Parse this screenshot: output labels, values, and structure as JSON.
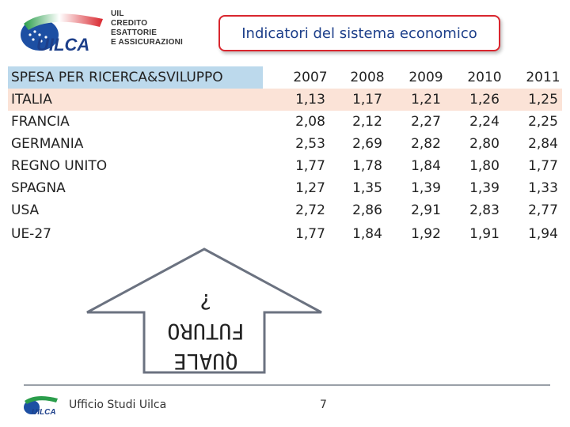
{
  "logo": {
    "wordmark": "UILCA",
    "lines": [
      "UIL",
      "CREDITO",
      "ESATTORIE",
      "E ASSICURAZIONI"
    ]
  },
  "title": "Indicatori del sistema economico",
  "table": {
    "header_label": "SPESA PER RICERCA&SVILUPPO",
    "years": [
      "2007",
      "2008",
      "2009",
      "2010",
      "2011"
    ],
    "rows": [
      {
        "country": "ITALIA",
        "values": [
          "1,13",
          "1,17",
          "1,21",
          "1,26",
          "1,25"
        ]
      },
      {
        "country": "FRANCIA",
        "values": [
          "2,08",
          "2,12",
          "2,27",
          "2,24",
          "2,25"
        ]
      },
      {
        "country": "GERMANIA",
        "values": [
          "2,53",
          "2,69",
          "2,82",
          "2,80",
          "2,84"
        ]
      },
      {
        "country": "REGNO UNITO",
        "values": [
          "1,77",
          "1,78",
          "1,84",
          "1,80",
          "1,77"
        ]
      },
      {
        "country": "SPAGNA",
        "values": [
          "1,27",
          "1,35",
          "1,39",
          "1,39",
          "1,33"
        ]
      },
      {
        "country": "USA",
        "values": [
          "2,72",
          "2,86",
          "2,91",
          "2,83",
          "2,77"
        ]
      },
      {
        "country": "UE-27",
        "values": [
          "1,77",
          "1,84",
          "1,92",
          "1,91",
          "1,94"
        ]
      }
    ]
  },
  "arrow": {
    "lines": [
      "QUALE",
      "FUTURO",
      "?"
    ]
  },
  "footer": {
    "label": "Ufficio Studi Uilca",
    "page_number": "7"
  },
  "colors": {
    "title_border": "#d9262e",
    "title_text": "#1d3f8a",
    "header_bg": "#bcd9ec",
    "highlight_bg": "#fbe3d7"
  }
}
